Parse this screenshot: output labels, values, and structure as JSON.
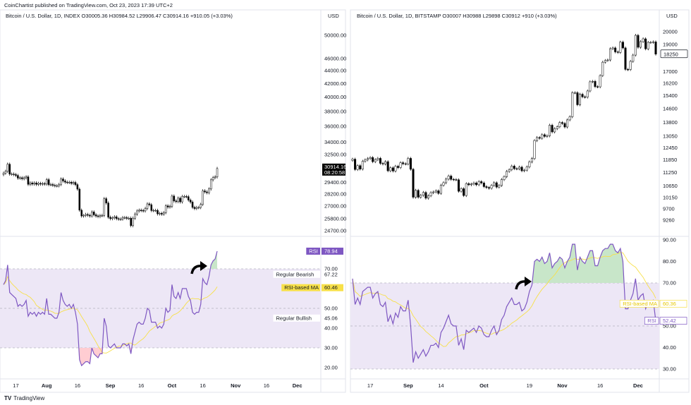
{
  "publisher_line": "CoinChartist published on TradingView.com, Oct 23, 2023 17:39 UTC+2",
  "footer_brand": "TradingView",
  "colors": {
    "candle_up_fill": "#ffffff",
    "candle_border": "#000000",
    "candle_down_fill": "#000000",
    "rsi_line": "#7e57c2",
    "rsi_ma": "#f7e049",
    "rsi_band": "#ede7f6",
    "overbought_fill": "#c8e6c9",
    "oversold_fill": "#ffcdd2"
  },
  "chart_data": [
    {
      "type": "candlestick",
      "title": "Bitcoin / U.S. Dollar, 1D, INDEX  O30005.36  H30984.52  L29906.47  C30914.16  +910.05 (+3.03%)",
      "currency": "USD",
      "scale": "log",
      "first_date": "2023-07-11",
      "closes": [
        30400,
        30600,
        31400,
        30300,
        30300,
        30250,
        30150,
        29860,
        29900,
        29800,
        29900,
        30000,
        29200,
        29350,
        29230,
        29350,
        29200,
        29300,
        29230,
        29280,
        29230,
        29700,
        29170,
        29180,
        29100,
        29050,
        29050,
        29180,
        29770,
        29560,
        29430,
        29400,
        29420,
        29300,
        29400,
        29170,
        28700,
        26600,
        26050,
        26100,
        26190,
        26120,
        26050,
        26430,
        26160,
        26050,
        26000,
        26090,
        26100,
        27730,
        27300,
        25930,
        25800,
        25870,
        25970,
        25800,
        25750,
        25760,
        25900,
        25900,
        25830,
        25840,
        25160,
        25840,
        26230,
        26530,
        26600,
        26570,
        26530,
        26760,
        27210,
        27130,
        26570,
        26580,
        26580,
        26250,
        26300,
        26220,
        26370,
        27020,
        26910,
        26970,
        27990,
        27500,
        27430,
        27780,
        27410,
        27950,
        27950,
        27930,
        27590,
        27390,
        26870,
        26760,
        26860,
        26860,
        27160,
        28520,
        28410,
        28330,
        28720,
        29680,
        29920,
        29990,
        30914.16
      ],
      "price_ticks": [
        "50000.00",
        "46000.00",
        "44000.00",
        "42000.00",
        "40000.00",
        "38000.00",
        "36000.00",
        "34000.00",
        "32500.00",
        "29400.00",
        "28200.00",
        "27000.00",
        "25800.00",
        "24700.00"
      ],
      "last_price_label": "30914.16",
      "countdown_label": "08:20:58",
      "rsi": [
        62,
        64,
        72,
        58,
        57,
        56,
        55,
        51,
        52,
        51,
        52,
        54,
        46,
        48,
        47,
        48,
        46,
        48,
        47,
        48,
        47,
        55,
        47,
        47,
        46,
        45,
        45,
        48,
        58,
        54,
        52,
        51,
        52,
        50,
        52,
        48,
        42,
        24,
        21,
        22,
        23,
        23,
        22,
        30,
        27,
        26,
        25,
        27,
        27,
        45,
        41,
        31,
        30,
        31,
        32,
        30,
        30,
        30,
        32,
        32,
        31,
        32,
        27,
        34,
        38,
        42,
        43,
        42,
        42,
        45,
        50,
        49,
        43,
        43,
        43,
        40,
        41,
        40,
        42,
        50,
        48,
        49,
        62,
        56,
        55,
        58,
        55,
        60,
        60,
        60,
        56,
        54,
        48,
        47,
        48,
        48,
        52,
        65,
        63,
        62,
        66,
        72,
        74,
        75,
        78.94
      ],
      "rsi_ticks": [
        "70.00",
        "50.00",
        "40.00",
        "30.00",
        "20.00"
      ],
      "rsi_labels": [
        {
          "name": "RSI",
          "value": "78.94",
          "style": "rsi-filled"
        },
        {
          "name": "Regular Bearish",
          "value": "67.22",
          "style": "plain"
        },
        {
          "name": "RSI-based MA",
          "value": "60.46",
          "style": "ma-filled"
        },
        {
          "name": "Regular Bullish",
          "value": "45.06",
          "style": "plain"
        }
      ],
      "rsi_bands": [
        70,
        50,
        30
      ],
      "x_ticks": [
        {
          "label": "17",
          "date": "2023-07-17"
        },
        {
          "label": "Aug",
          "date": "2023-08-01"
        },
        {
          "label": "16",
          "date": "2023-08-16"
        },
        {
          "label": "Sep",
          "date": "2023-09-01"
        },
        {
          "label": "16",
          "date": "2023-09-16"
        },
        {
          "label": "Oct",
          "date": "2023-10-01"
        },
        {
          "label": "16",
          "date": "2023-10-16"
        },
        {
          "label": "Nov",
          "date": "2023-11-01"
        },
        {
          "label": "16",
          "date": "2023-11-16"
        },
        {
          "label": "Dec",
          "date": "2023-12-01"
        }
      ],
      "annotation": "curved-arrow"
    },
    {
      "type": "candlestick",
      "title": "Bitcoin / U.S. Dollar, 1D, BITSTAMP  O30007  H30988  L29898  C30912  +910 (+3.03%)",
      "currency": "USD",
      "scale": "log",
      "first_date": "2020-08-10",
      "closes": [
        11880,
        11390,
        11570,
        11410,
        11780,
        11850,
        11910,
        11960,
        11760,
        11860,
        11920,
        11680,
        11650,
        11760,
        11330,
        11470,
        11320,
        11540,
        11480,
        11710,
        11660,
        11650,
        11920,
        11400,
        10170,
        10460,
        10170,
        10250,
        10370,
        10130,
        10230,
        10360,
        10390,
        10440,
        10330,
        10680,
        10790,
        10950,
        11090,
        10940,
        10930,
        10920,
        10420,
        10530,
        10240,
        10750,
        10700,
        10730,
        10780,
        10700,
        10840,
        10780,
        10620,
        10580,
        10550,
        10670,
        10790,
        10600,
        10670,
        10930,
        11060,
        11300,
        11380,
        11550,
        11430,
        11420,
        11500,
        11330,
        11360,
        11510,
        11750,
        11910,
        12820,
        12980,
        12940,
        13130,
        13040,
        13070,
        13650,
        13280,
        13460,
        13560,
        13800,
        13750,
        13550,
        13950,
        14130,
        15590,
        15590,
        14840,
        15490,
        15330,
        15310,
        15700,
        16300,
        16330,
        15980,
        15970,
        16720,
        17660,
        17780,
        17820,
        18660,
        18720,
        18420,
        18380,
        19170,
        18720,
        17150,
        17140,
        17720,
        18180,
        19710,
        18770,
        19210,
        19430,
        18650,
        19150,
        19150,
        19190,
        18250
      ],
      "price_ticks": [
        "20000",
        "19000",
        "17000",
        "16200",
        "15400",
        "14600",
        "13800",
        "13050",
        "12450",
        "11850",
        "11250",
        "10650",
        "10150",
        "9700",
        "9260"
      ],
      "last_price_label": "18250",
      "rsi": [
        72,
        60,
        63,
        60,
        66,
        67,
        68,
        68,
        63,
        65,
        66,
        60,
        59,
        61,
        52,
        55,
        51,
        56,
        54,
        59,
        57,
        57,
        62,
        50,
        33,
        38,
        35,
        37,
        39,
        36,
        38,
        41,
        41,
        42,
        40,
        47,
        49,
        52,
        55,
        51,
        50,
        50,
        41,
        44,
        39,
        48,
        47,
        48,
        49,
        47,
        50,
        49,
        46,
        45,
        45,
        48,
        50,
        46,
        48,
        53,
        55,
        59,
        61,
        63,
        60,
        60,
        61,
        57,
        58,
        61,
        66,
        69,
        80,
        81,
        80,
        82,
        79,
        80,
        84,
        77,
        79,
        80,
        82,
        81,
        77,
        80,
        82,
        88,
        88,
        76,
        82,
        80,
        79,
        82,
        85,
        85,
        78,
        78,
        82,
        85,
        86,
        86,
        88,
        88,
        85,
        84,
        86,
        80,
        58,
        58,
        62,
        65,
        72,
        62,
        64,
        65,
        58,
        61,
        61,
        62,
        52.42
      ],
      "rsi_ticks": [
        "90.00",
        "80.00",
        "70.00",
        "50.00",
        "40.00",
        "30.00"
      ],
      "rsi_labels": [
        {
          "name": "RSI-based MA",
          "value": "60.36",
          "style": "ma-outline"
        },
        {
          "name": "RSI",
          "value": "52.42",
          "style": "rsi-outline"
        }
      ],
      "rsi_bands": [
        70,
        50,
        30
      ],
      "x_ticks": [
        {
          "label": "17",
          "date": "2020-08-17"
        },
        {
          "label": "Sep",
          "date": "2020-09-01"
        },
        {
          "label": "14",
          "date": "2020-09-14"
        },
        {
          "label": "Oct",
          "date": "2020-10-01"
        },
        {
          "label": "19",
          "date": "2020-10-19"
        },
        {
          "label": "Nov",
          "date": "2020-11-01"
        },
        {
          "label": "16",
          "date": "2020-11-16"
        },
        {
          "label": "Dec",
          "date": "2020-12-01"
        }
      ],
      "annotation": "curved-arrow"
    }
  ]
}
